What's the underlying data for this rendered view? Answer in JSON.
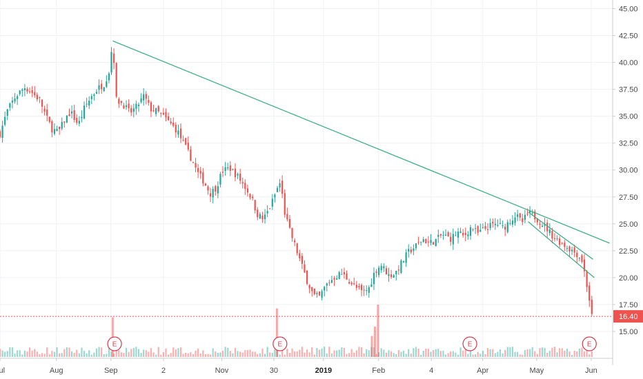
{
  "chart_data": {
    "type": "candlestick",
    "y_axis": {
      "position": "right",
      "ylim": [
        12.5,
        45.8
      ],
      "ticks": [
        "15.00",
        "17.50",
        "20.00",
        "22.50",
        "25.00",
        "27.50",
        "30.00",
        "32.50",
        "35.00",
        "37.50",
        "40.00",
        "42.50",
        "45.00"
      ]
    },
    "x_axis": {
      "labels": [
        {
          "text": "Jul",
          "pos": 0.0,
          "bold": false
        },
        {
          "text": "Aug",
          "pos": 0.092,
          "bold": false
        },
        {
          "text": "Sep",
          "pos": 0.181,
          "bold": false
        },
        {
          "text": "2",
          "pos": 0.267,
          "bold": false
        },
        {
          "text": "Nov",
          "pos": 0.362,
          "bold": false
        },
        {
          "text": "30",
          "pos": 0.447,
          "bold": false
        },
        {
          "text": "2019",
          "pos": 0.528,
          "bold": true
        },
        {
          "text": "Feb",
          "pos": 0.618,
          "bold": false
        },
        {
          "text": "4",
          "pos": 0.704,
          "bold": false
        },
        {
          "text": "Apr",
          "pos": 0.788,
          "bold": false
        },
        {
          "text": "May",
          "pos": 0.876,
          "bold": false
        },
        {
          "text": "Jun",
          "pos": 0.965,
          "bold": false
        }
      ]
    },
    "last_price": {
      "value": 16.4,
      "label": "16.40",
      "color": "#ef5350"
    },
    "colors": {
      "up": "#26a69a",
      "down": "#ef5350",
      "trend": "#3daf8a",
      "grid": "#eef1f4",
      "axis_text": "#4a4a4a"
    },
    "earnings_markers": [
      {
        "label": "E",
        "pos": 0.187
      },
      {
        "label": "E",
        "pos": 0.457
      },
      {
        "label": "E",
        "pos": 0.767
      },
      {
        "label": "E",
        "pos": 0.962
      }
    ],
    "price_path": [
      [
        0.0,
        33.4
      ],
      [
        0.012,
        35.5
      ],
      [
        0.025,
        36.8
      ],
      [
        0.04,
        37.7
      ],
      [
        0.052,
        37.2
      ],
      [
        0.065,
        36.5
      ],
      [
        0.075,
        35.0
      ],
      [
        0.085,
        33.8
      ],
      [
        0.095,
        33.5
      ],
      [
        0.105,
        34.6
      ],
      [
        0.115,
        35.4
      ],
      [
        0.128,
        34.2
      ],
      [
        0.138,
        35.8
      ],
      [
        0.15,
        36.9
      ],
      [
        0.16,
        37.6
      ],
      [
        0.17,
        38.0
      ],
      [
        0.178,
        39.2
      ],
      [
        0.184,
        42.0
      ],
      [
        0.19,
        36.5
      ],
      [
        0.2,
        36.2
      ],
      [
        0.212,
        35.3
      ],
      [
        0.222,
        35.8
      ],
      [
        0.235,
        36.9
      ],
      [
        0.245,
        35.7
      ],
      [
        0.257,
        35.4
      ],
      [
        0.268,
        34.9
      ],
      [
        0.28,
        34.2
      ],
      [
        0.29,
        33.6
      ],
      [
        0.3,
        32.4
      ],
      [
        0.312,
        31.1
      ],
      [
        0.322,
        29.8
      ],
      [
        0.333,
        28.9
      ],
      [
        0.343,
        27.8
      ],
      [
        0.353,
        28.4
      ],
      [
        0.363,
        29.9
      ],
      [
        0.375,
        30.2
      ],
      [
        0.388,
        29.4
      ],
      [
        0.398,
        28.6
      ],
      [
        0.41,
        27.5
      ],
      [
        0.42,
        25.9
      ],
      [
        0.43,
        25.4
      ],
      [
        0.442,
        26.7
      ],
      [
        0.452,
        28.2
      ],
      [
        0.458,
        28.9
      ],
      [
        0.464,
        26.2
      ],
      [
        0.472,
        24.5
      ],
      [
        0.482,
        22.9
      ],
      [
        0.492,
        21.2
      ],
      [
        0.502,
        19.6
      ],
      [
        0.512,
        18.3
      ],
      [
        0.522,
        18.2
      ],
      [
        0.532,
        19.3
      ],
      [
        0.545,
        20.0
      ],
      [
        0.557,
        20.4
      ],
      [
        0.567,
        19.9
      ],
      [
        0.58,
        19.1
      ],
      [
        0.592,
        18.6
      ],
      [
        0.602,
        19.0
      ],
      [
        0.612,
        20.6
      ],
      [
        0.622,
        21.2
      ],
      [
        0.635,
        20.2
      ],
      [
        0.645,
        20.4
      ],
      [
        0.657,
        21.5
      ],
      [
        0.667,
        22.4
      ],
      [
        0.68,
        23.0
      ],
      [
        0.69,
        23.6
      ],
      [
        0.7,
        23.2
      ],
      [
        0.712,
        23.5
      ],
      [
        0.722,
        24.0
      ],
      [
        0.735,
        23.6
      ],
      [
        0.747,
        24.2
      ],
      [
        0.757,
        23.8
      ],
      [
        0.769,
        24.7
      ],
      [
        0.78,
        24.1
      ],
      [
        0.79,
        24.5
      ],
      [
        0.8,
        24.8
      ],
      [
        0.812,
        25.0
      ],
      [
        0.822,
        24.6
      ],
      [
        0.832,
        25.3
      ],
      [
        0.842,
        25.8
      ],
      [
        0.852,
        25.1
      ],
      [
        0.862,
        26.0
      ],
      [
        0.872,
        25.7
      ],
      [
        0.882,
        25.2
      ],
      [
        0.892,
        24.6
      ],
      [
        0.902,
        23.9
      ],
      [
        0.912,
        23.4
      ],
      [
        0.922,
        23.0
      ],
      [
        0.932,
        22.6
      ],
      [
        0.942,
        22.2
      ],
      [
        0.95,
        21.6
      ],
      [
        0.955,
        20.2
      ],
      [
        0.961,
        18.3
      ],
      [
        0.966,
        16.4
      ]
    ],
    "volume_spikes": [
      {
        "pos": 0.184,
        "level": 0.72
      },
      {
        "pos": 0.452,
        "level": 0.88
      },
      {
        "pos": 0.607,
        "level": 0.38
      },
      {
        "pos": 0.612,
        "level": 0.55
      },
      {
        "pos": 0.617,
        "level": 0.95
      }
    ],
    "trendlines": [
      {
        "from": [
          0.184,
          42.0
        ],
        "to": [
          0.995,
          23.2
        ]
      },
      {
        "from": [
          0.862,
          26.1
        ],
        "to": [
          0.968,
          21.7
        ]
      },
      {
        "from": [
          0.862,
          25.2
        ],
        "to": [
          0.97,
          20.0
        ]
      }
    ]
  }
}
